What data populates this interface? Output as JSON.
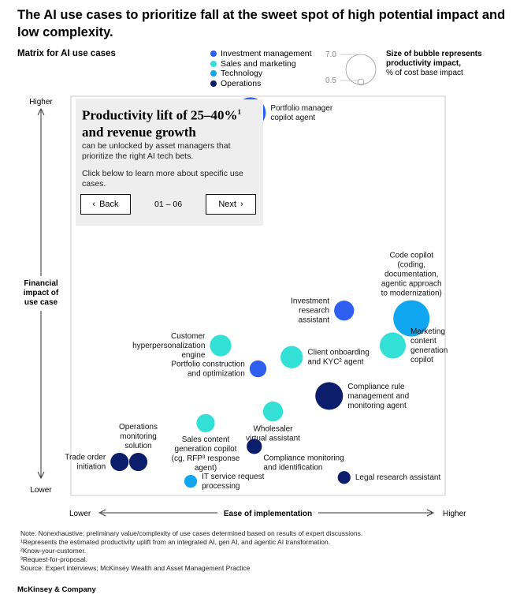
{
  "title": "The AI use cases to prioritize fall at the sweet spot of high potential impact and low complexity.",
  "subtitle": "Matrix for AI use cases",
  "legend": {
    "categories": [
      {
        "name": "Investment management",
        "color": "#2e5ff0"
      },
      {
        "name": "Sales and marketing",
        "color": "#33e0d6"
      },
      {
        "name": "Technology",
        "color": "#10a7f0"
      },
      {
        "name": "Operations",
        "color": "#0c1d6b"
      }
    ],
    "size_max": "7.0",
    "size_min": "0.5",
    "size_title": "Size of bubble represents productivity impact,",
    "size_unit": "% of cost base impact"
  },
  "infobox": {
    "headline_main": "Productivity lift of 25–40%",
    "headline_sup": "1",
    "headline_tail": "and revenue growth",
    "body1": "can be unlocked by asset managers that prioritize the right AI tech bets.",
    "body2": "Click below to learn more about specific use cases.",
    "back_label": "Back",
    "next_label": "Next",
    "pager": "01 – 06"
  },
  "chart_data": {
    "type": "scatter",
    "title": "Matrix for AI use cases",
    "xlabel": "Ease of implementation",
    "ylabel": "Financial impact of use case",
    "x_low": "Lower",
    "x_high": "Higher",
    "y_low": "Lower",
    "y_high": "Higher",
    "xlim": [
      0,
      100
    ],
    "ylim": [
      0,
      100
    ],
    "size_range": [
      0.5,
      7.0
    ],
    "points": [
      {
        "label": [
          "Portfolio manager",
          "copilot agent"
        ],
        "category": "Investment management",
        "x": 48,
        "y": 97,
        "size": 4.5,
        "label_pos": "right"
      },
      {
        "label": [
          "Code copilot",
          "(coding,",
          "documentation,",
          "agentic approach",
          "to modernization)"
        ],
        "category": "Technology",
        "x": 91,
        "y": 44,
        "size": 7.0,
        "label_pos": "above"
      },
      {
        "label": [
          "Investment",
          "research",
          "assistant"
        ],
        "category": "Investment management",
        "x": 73,
        "y": 46,
        "size": 1.5,
        "label_pos": "left"
      },
      {
        "label": [
          "Marketing",
          "content",
          "generation",
          "copilot"
        ],
        "category": "Sales and marketing",
        "x": 86,
        "y": 37,
        "size": 3.0,
        "label_pos": "right"
      },
      {
        "label": [
          "Customer",
          "hyperpersonalization",
          "engine"
        ],
        "category": "Sales and marketing",
        "x": 40,
        "y": 37,
        "size": 1.8,
        "label_pos": "left"
      },
      {
        "label": [
          "Client onboarding",
          "and KYC² agent"
        ],
        "category": "Sales and marketing",
        "x": 59,
        "y": 34,
        "size": 2.0,
        "label_pos": "right"
      },
      {
        "label": [
          "Portfolio construction",
          "and optimization"
        ],
        "category": "Investment management",
        "x": 50,
        "y": 31,
        "size": 1.0,
        "label_pos": "left"
      },
      {
        "label": [
          "Compliance rule",
          "management and",
          "monitoring agent"
        ],
        "category": "Operations",
        "x": 69,
        "y": 24,
        "size": 3.5,
        "label_pos": "right"
      },
      {
        "label": [
          "Wholesaler",
          "virtual assistant"
        ],
        "category": "Sales and marketing",
        "x": 54,
        "y": 20,
        "size": 1.5,
        "label_pos": "below"
      },
      {
        "label": [
          "Sales content",
          "generation copilot",
          "(cg, RFP³ response",
          "agent)"
        ],
        "category": "Sales and marketing",
        "x": 36,
        "y": 17,
        "size": 1.2,
        "label_pos": "below"
      },
      {
        "label": [
          "Operations",
          "monitoring",
          "solution"
        ],
        "category": "Operations",
        "x": 18,
        "y": 7,
        "size": 1.2,
        "label_pos": "above"
      },
      {
        "label": [
          "Trade order",
          "initiation"
        ],
        "category": "Operations",
        "x": 13,
        "y": 7,
        "size": 1.2,
        "label_pos": "left"
      },
      {
        "label": [
          "Compliance monitoring",
          "and identification"
        ],
        "category": "Operations",
        "x": 49,
        "y": 11,
        "size": 0.8,
        "label_pos": "right-below"
      },
      {
        "label": [
          "IT service request",
          "processing"
        ],
        "category": "Technology",
        "x": 32,
        "y": 2,
        "size": 0.6,
        "label_pos": "right"
      },
      {
        "label": [
          "Legal research assistant"
        ],
        "category": "Operations",
        "x": 73,
        "y": 3,
        "size": 0.6,
        "label_pos": "right"
      }
    ]
  },
  "footnotes": [
    "Note: Nonexhaustive; preliminary value/complexity of use cases determined based on results of expert discussions.",
    "¹Represents the estimated productivity uplift from an integrated AI, gen AI, and agentic AI transformation.",
    "²Know-your-customer.",
    "³Request-for-proposal.",
    "Source: Expert interviews; McKinsey Wealth and Asset Management Practice"
  ],
  "brand": "McKinsey & Company"
}
